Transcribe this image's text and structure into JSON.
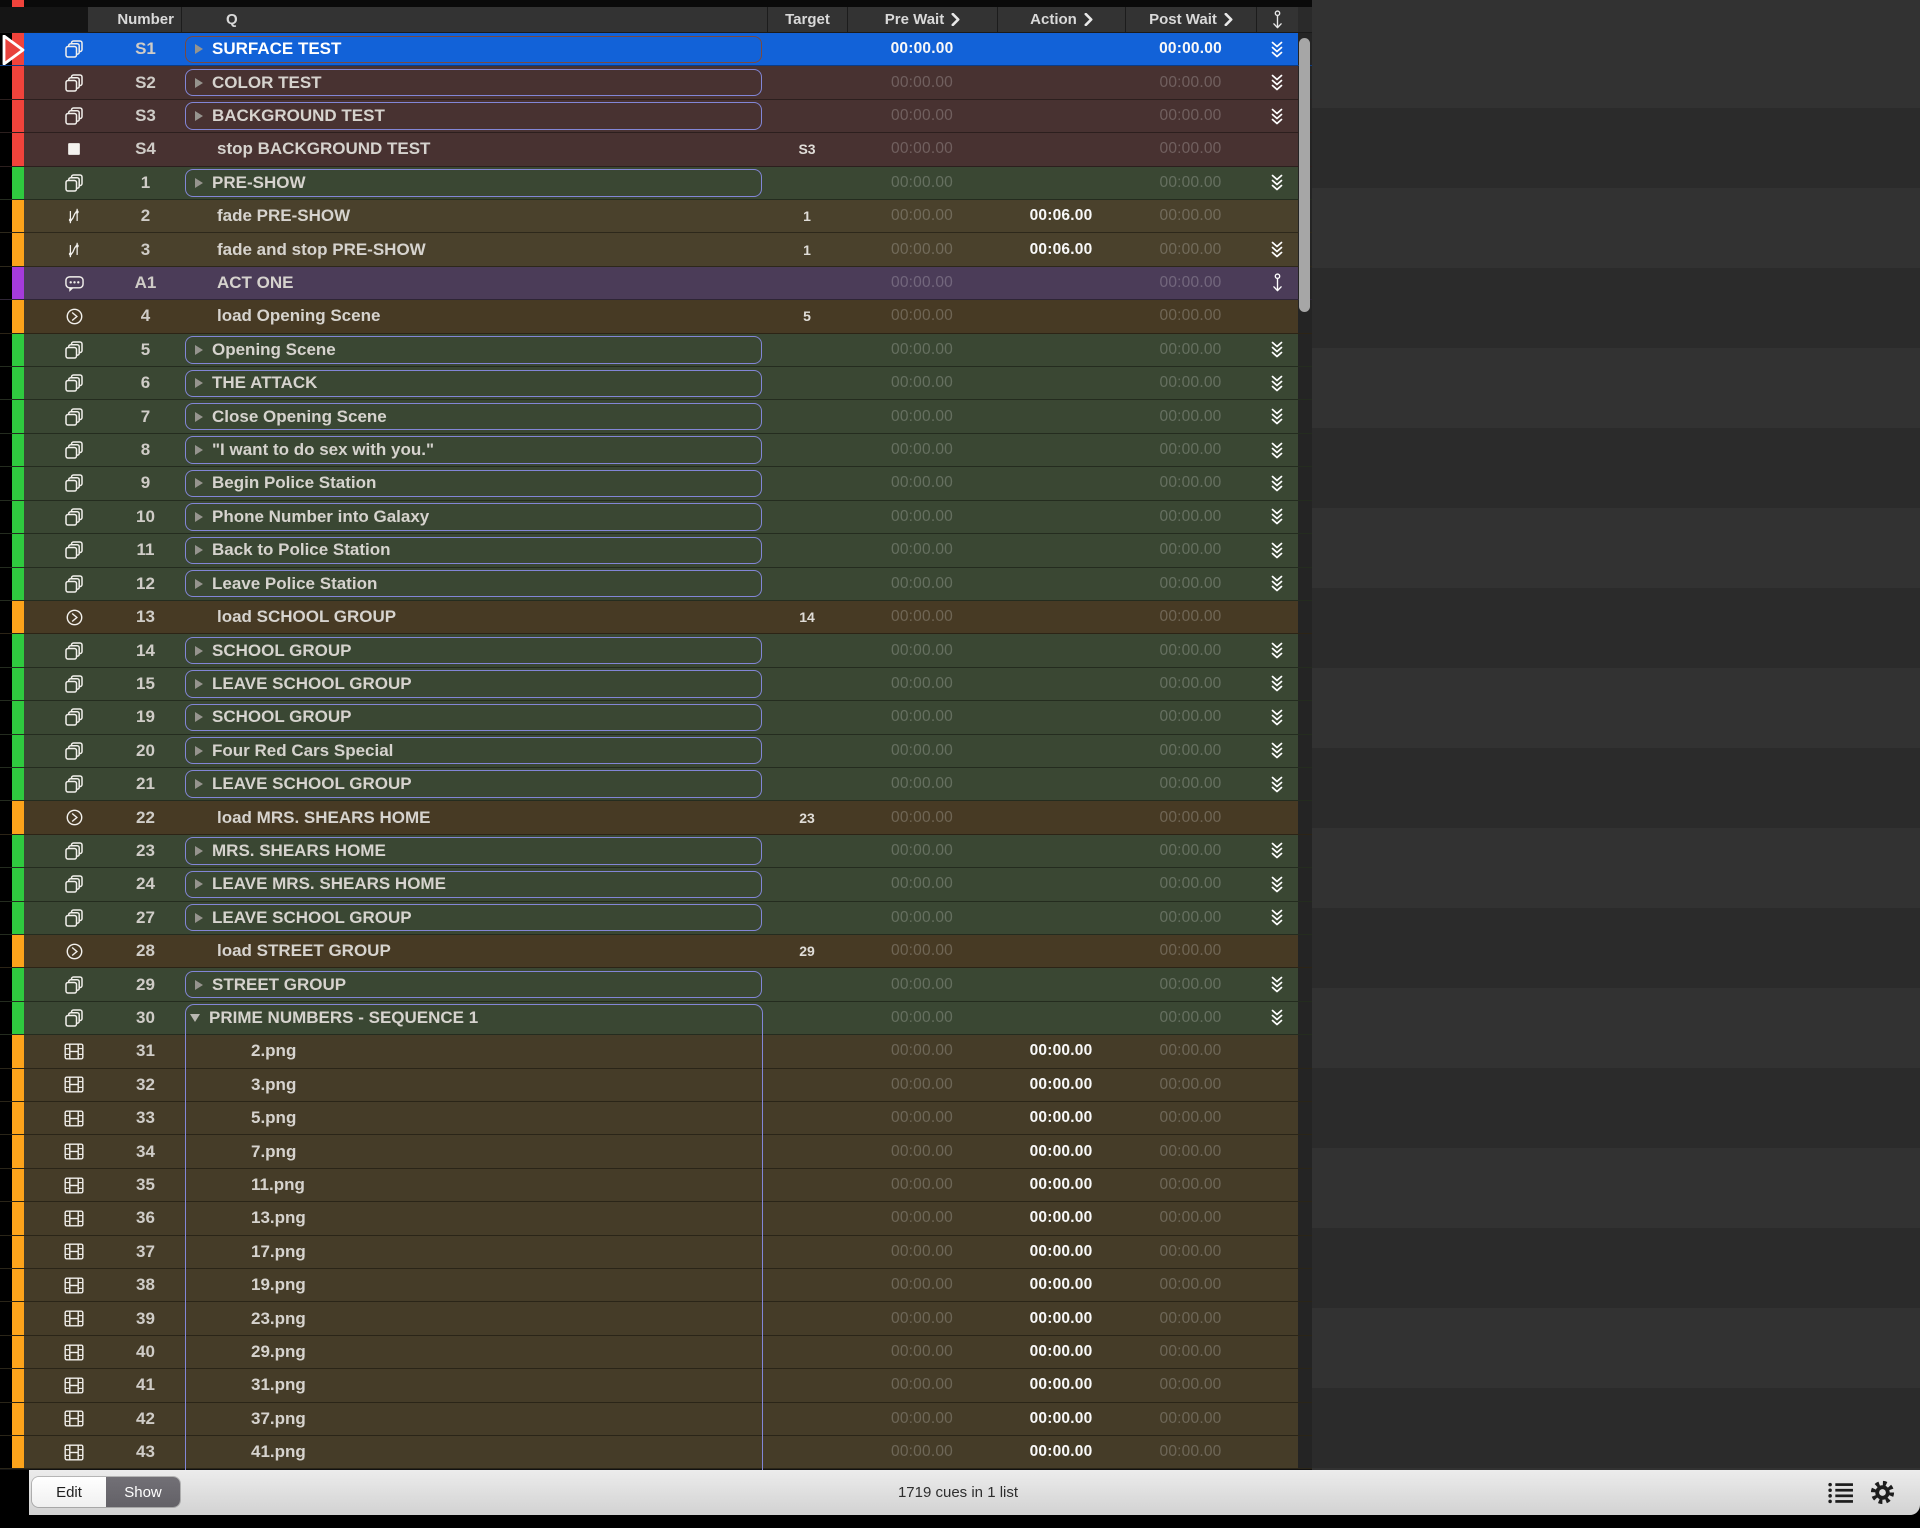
{
  "header": {
    "columns": {
      "number": "Number",
      "q": "Q",
      "target": "Target",
      "pre_wait": "Pre Wait",
      "action": "Action",
      "post_wait": "Post Wait"
    },
    "follow_column_icon": "continue-arrow-icon"
  },
  "footer": {
    "edit_label": "Edit",
    "show_label": "Show",
    "status": "1719 cues in 1 list",
    "icons": [
      "cue-list-icon",
      "gear-icon"
    ]
  },
  "palette": {
    "row_colors": {
      "selected": "#1262D8",
      "maroon": "#483231",
      "green": "#3A4733",
      "olive": "#4A412C",
      "brown": "#473A24",
      "video": "#453C28",
      "purple": "#4B3C58"
    },
    "strip_colors": {
      "red": "#F0433B",
      "green": "#2FC93F",
      "orange": "#FCA31B",
      "purple": "#A43BDB"
    },
    "accents": {
      "group_box_border": "#8286D6",
      "selected_box_border": "#7A4A40",
      "playhead_red": "#E8423C"
    }
  },
  "rows": [
    {
      "num": "S1",
      "name": "SURFACE TEST",
      "icon": "group-icon",
      "color": "selected",
      "strip": "red",
      "box": "selected",
      "follow": "chevrons",
      "target": "",
      "pre": "00:00.00",
      "pre_bright": true,
      "action": "",
      "post": "00:00.00",
      "post_bright": true,
      "selected": true,
      "playhead": true
    },
    {
      "num": "S2",
      "name": "COLOR TEST",
      "icon": "group-icon",
      "color": "maroon",
      "strip": "red",
      "box": "plain",
      "follow": "chevrons",
      "target": "",
      "pre": "00:00.00",
      "action": "",
      "post": "00:00.00"
    },
    {
      "num": "S3",
      "name": "BACKGROUND TEST",
      "icon": "group-icon",
      "color": "maroon",
      "strip": "red",
      "box": "plain",
      "follow": "chevrons",
      "target": "",
      "pre": "00:00.00",
      "action": "",
      "post": "00:00.00"
    },
    {
      "num": "S4",
      "name": "stop BACKGROUND TEST",
      "icon": "stop-icon",
      "color": "maroon",
      "strip": "red",
      "box": "",
      "follow": "",
      "target": "S3",
      "pre": "00:00.00",
      "action": "",
      "post": "00:00.00"
    },
    {
      "num": "1",
      "name": "PRE-SHOW",
      "icon": "group-icon",
      "color": "green",
      "strip": "green",
      "box": "plain",
      "follow": "chevrons",
      "target": "",
      "pre": "00:00.00",
      "action": "",
      "post": "00:00.00"
    },
    {
      "num": "2",
      "name": "fade PRE-SHOW",
      "icon": "fade-icon",
      "color": "olive",
      "strip": "orange",
      "box": "",
      "follow": "",
      "target": "1",
      "pre": "00:00.00",
      "action": "00:06.00",
      "action_bright": true,
      "post": "00:00.00"
    },
    {
      "num": "3",
      "name": "fade and stop PRE-SHOW",
      "icon": "fade-icon",
      "color": "olive",
      "strip": "orange",
      "box": "",
      "follow": "chevrons",
      "target": "1",
      "pre": "00:00.00",
      "action": "00:06.00",
      "action_bright": true,
      "post": "00:00.00"
    },
    {
      "num": "A1",
      "name": "ACT ONE",
      "icon": "memo-icon",
      "color": "purple",
      "strip": "purple",
      "box": "",
      "follow": "arrow",
      "target": "",
      "pre": "00:00.00",
      "action": "",
      "post": "00:00.00"
    },
    {
      "num": "4",
      "name": "load Opening Scene",
      "icon": "load-icon",
      "color": "brown",
      "strip": "orange",
      "box": "",
      "follow": "",
      "target": "5",
      "pre": "00:00.00",
      "action": "",
      "post": "00:00.00"
    },
    {
      "num": "5",
      "name": "Opening Scene",
      "icon": "group-icon",
      "color": "green",
      "strip": "green",
      "box": "plain",
      "follow": "chevrons",
      "target": "",
      "pre": "00:00.00",
      "action": "",
      "post": "00:00.00"
    },
    {
      "num": "6",
      "name": "THE ATTACK",
      "icon": "group-icon",
      "color": "green",
      "strip": "green",
      "box": "plain",
      "follow": "chevrons",
      "target": "",
      "pre": "00:00.00",
      "action": "",
      "post": "00:00.00"
    },
    {
      "num": "7",
      "name": "Close Opening Scene",
      "icon": "group-icon",
      "color": "green",
      "strip": "green",
      "box": "plain",
      "follow": "chevrons",
      "target": "",
      "pre": "00:00.00",
      "action": "",
      "post": "00:00.00"
    },
    {
      "num": "8",
      "name": "\"I want to do sex with you.\"",
      "icon": "group-icon",
      "color": "green",
      "strip": "green",
      "box": "plain",
      "follow": "chevrons",
      "target": "",
      "pre": "00:00.00",
      "action": "",
      "post": "00:00.00"
    },
    {
      "num": "9",
      "name": "Begin Police Station",
      "icon": "group-icon",
      "color": "green",
      "strip": "green",
      "box": "plain",
      "follow": "chevrons",
      "target": "",
      "pre": "00:00.00",
      "action": "",
      "post": "00:00.00"
    },
    {
      "num": "10",
      "name": "Phone Number into Galaxy",
      "icon": "group-icon",
      "color": "green",
      "strip": "green",
      "box": "plain",
      "follow": "chevrons",
      "target": "",
      "pre": "00:00.00",
      "action": "",
      "post": "00:00.00"
    },
    {
      "num": "11",
      "name": "Back to Police Station",
      "icon": "group-icon",
      "color": "green",
      "strip": "green",
      "box": "plain",
      "follow": "chevrons",
      "target": "",
      "pre": "00:00.00",
      "action": "",
      "post": "00:00.00"
    },
    {
      "num": "12",
      "name": "Leave Police Station",
      "icon": "group-icon",
      "color": "green",
      "strip": "green",
      "box": "plain",
      "follow": "chevrons",
      "target": "",
      "pre": "00:00.00",
      "action": "",
      "post": "00:00.00"
    },
    {
      "num": "13",
      "name": "load SCHOOL GROUP",
      "icon": "load-icon",
      "color": "brown",
      "strip": "orange",
      "box": "",
      "follow": "",
      "target": "14",
      "pre": "00:00.00",
      "action": "",
      "post": "00:00.00"
    },
    {
      "num": "14",
      "name": "SCHOOL GROUP",
      "icon": "group-icon",
      "color": "green",
      "strip": "green",
      "box": "plain",
      "follow": "chevrons",
      "target": "",
      "pre": "00:00.00",
      "action": "",
      "post": "00:00.00"
    },
    {
      "num": "15",
      "name": "LEAVE SCHOOL GROUP",
      "icon": "group-icon",
      "color": "green",
      "strip": "green",
      "box": "plain",
      "follow": "chevrons",
      "target": "",
      "pre": "00:00.00",
      "action": "",
      "post": "00:00.00"
    },
    {
      "num": "19",
      "name": "SCHOOL GROUP",
      "icon": "group-icon",
      "color": "green",
      "strip": "green",
      "box": "plain",
      "follow": "chevrons",
      "target": "",
      "pre": "00:00.00",
      "action": "",
      "post": "00:00.00"
    },
    {
      "num": "20",
      "name": "Four Red Cars Special",
      "icon": "group-icon",
      "color": "green",
      "strip": "green",
      "box": "plain",
      "follow": "chevrons",
      "target": "",
      "pre": "00:00.00",
      "action": "",
      "post": "00:00.00"
    },
    {
      "num": "21",
      "name": "LEAVE SCHOOL GROUP",
      "icon": "group-icon",
      "color": "green",
      "strip": "green",
      "box": "plain",
      "follow": "chevrons",
      "target": "",
      "pre": "00:00.00",
      "action": "",
      "post": "00:00.00"
    },
    {
      "num": "22",
      "name": "load MRS. SHEARS HOME",
      "icon": "load-icon",
      "color": "brown",
      "strip": "orange",
      "box": "",
      "follow": "",
      "target": "23",
      "pre": "00:00.00",
      "action": "",
      "post": "00:00.00"
    },
    {
      "num": "23",
      "name": "MRS. SHEARS HOME",
      "icon": "group-icon",
      "color": "green",
      "strip": "green",
      "box": "plain",
      "follow": "chevrons",
      "target": "",
      "pre": "00:00.00",
      "action": "",
      "post": "00:00.00"
    },
    {
      "num": "24",
      "name": "LEAVE MRS. SHEARS HOME",
      "icon": "group-icon",
      "color": "green",
      "strip": "green",
      "box": "plain",
      "follow": "chevrons",
      "target": "",
      "pre": "00:00.00",
      "action": "",
      "post": "00:00.00"
    },
    {
      "num": "27",
      "name": "LEAVE SCHOOL GROUP",
      "icon": "group-icon",
      "color": "green",
      "strip": "green",
      "box": "plain",
      "follow": "chevrons",
      "target": "",
      "pre": "00:00.00",
      "action": "",
      "post": "00:00.00"
    },
    {
      "num": "28",
      "name": "load STREET GROUP",
      "icon": "load-icon",
      "color": "brown",
      "strip": "orange",
      "box": "",
      "follow": "",
      "target": "29",
      "pre": "00:00.00",
      "action": "",
      "post": "00:00.00"
    },
    {
      "num": "29",
      "name": "STREET GROUP",
      "icon": "group-icon",
      "color": "green",
      "strip": "green",
      "box": "plain",
      "follow": "chevrons",
      "target": "",
      "pre": "00:00.00",
      "action": "",
      "post": "00:00.00"
    },
    {
      "num": "30",
      "name": "PRIME NUMBERS - SEQUENCE 1",
      "icon": "group-icon",
      "color": "green",
      "strip": "green",
      "box": "expanded",
      "follow": "chevrons",
      "target": "",
      "pre": "00:00.00",
      "action": "",
      "post": "00:00.00"
    },
    {
      "num": "31",
      "name": "2.png",
      "icon": "video-icon",
      "color": "video",
      "strip": "orange",
      "child": true,
      "box": "",
      "follow": "",
      "target": "",
      "pre": "00:00.00",
      "action": "00:00.00",
      "action_bright": true,
      "post": "00:00.00"
    },
    {
      "num": "32",
      "name": "3.png",
      "icon": "video-icon",
      "color": "video",
      "strip": "orange",
      "child": true,
      "box": "",
      "follow": "",
      "target": "",
      "pre": "00:00.00",
      "action": "00:00.00",
      "action_bright": true,
      "post": "00:00.00"
    },
    {
      "num": "33",
      "name": "5.png",
      "icon": "video-icon",
      "color": "video",
      "strip": "orange",
      "child": true,
      "box": "",
      "follow": "",
      "target": "",
      "pre": "00:00.00",
      "action": "00:00.00",
      "action_bright": true,
      "post": "00:00.00"
    },
    {
      "num": "34",
      "name": "7.png",
      "icon": "video-icon",
      "color": "video",
      "strip": "orange",
      "child": true,
      "box": "",
      "follow": "",
      "target": "",
      "pre": "00:00.00",
      "action": "00:00.00",
      "action_bright": true,
      "post": "00:00.00"
    },
    {
      "num": "35",
      "name": "11.png",
      "icon": "video-icon",
      "color": "video",
      "strip": "orange",
      "child": true,
      "box": "",
      "follow": "",
      "target": "",
      "pre": "00:00.00",
      "action": "00:00.00",
      "action_bright": true,
      "post": "00:00.00"
    },
    {
      "num": "36",
      "name": "13.png",
      "icon": "video-icon",
      "color": "video",
      "strip": "orange",
      "child": true,
      "box": "",
      "follow": "",
      "target": "",
      "pre": "00:00.00",
      "action": "00:00.00",
      "action_bright": true,
      "post": "00:00.00"
    },
    {
      "num": "37",
      "name": "17.png",
      "icon": "video-icon",
      "color": "video",
      "strip": "orange",
      "child": true,
      "box": "",
      "follow": "",
      "target": "",
      "pre": "00:00.00",
      "action": "00:00.00",
      "action_bright": true,
      "post": "00:00.00"
    },
    {
      "num": "38",
      "name": "19.png",
      "icon": "video-icon",
      "color": "video",
      "strip": "orange",
      "child": true,
      "box": "",
      "follow": "",
      "target": "",
      "pre": "00:00.00",
      "action": "00:00.00",
      "action_bright": true,
      "post": "00:00.00"
    },
    {
      "num": "39",
      "name": "23.png",
      "icon": "video-icon",
      "color": "video",
      "strip": "orange",
      "child": true,
      "box": "",
      "follow": "",
      "target": "",
      "pre": "00:00.00",
      "action": "00:00.00",
      "action_bright": true,
      "post": "00:00.00"
    },
    {
      "num": "40",
      "name": "29.png",
      "icon": "video-icon",
      "color": "video",
      "strip": "orange",
      "child": true,
      "box": "",
      "follow": "",
      "target": "",
      "pre": "00:00.00",
      "action": "00:00.00",
      "action_bright": true,
      "post": "00:00.00"
    },
    {
      "num": "41",
      "name": "31.png",
      "icon": "video-icon",
      "color": "video",
      "strip": "orange",
      "child": true,
      "box": "",
      "follow": "",
      "target": "",
      "pre": "00:00.00",
      "action": "00:00.00",
      "action_bright": true,
      "post": "00:00.00"
    },
    {
      "num": "42",
      "name": "37.png",
      "icon": "video-icon",
      "color": "video",
      "strip": "orange",
      "child": true,
      "box": "",
      "follow": "",
      "target": "",
      "pre": "00:00.00",
      "action": "00:00.00",
      "action_bright": true,
      "post": "00:00.00"
    },
    {
      "num": "43",
      "name": "41.png",
      "icon": "video-icon",
      "color": "video",
      "strip": "orange",
      "child": true,
      "box": "",
      "follow": "",
      "target": "",
      "pre": "00:00.00",
      "action": "00:00.00",
      "action_bright": true,
      "post": "00:00.00"
    }
  ]
}
